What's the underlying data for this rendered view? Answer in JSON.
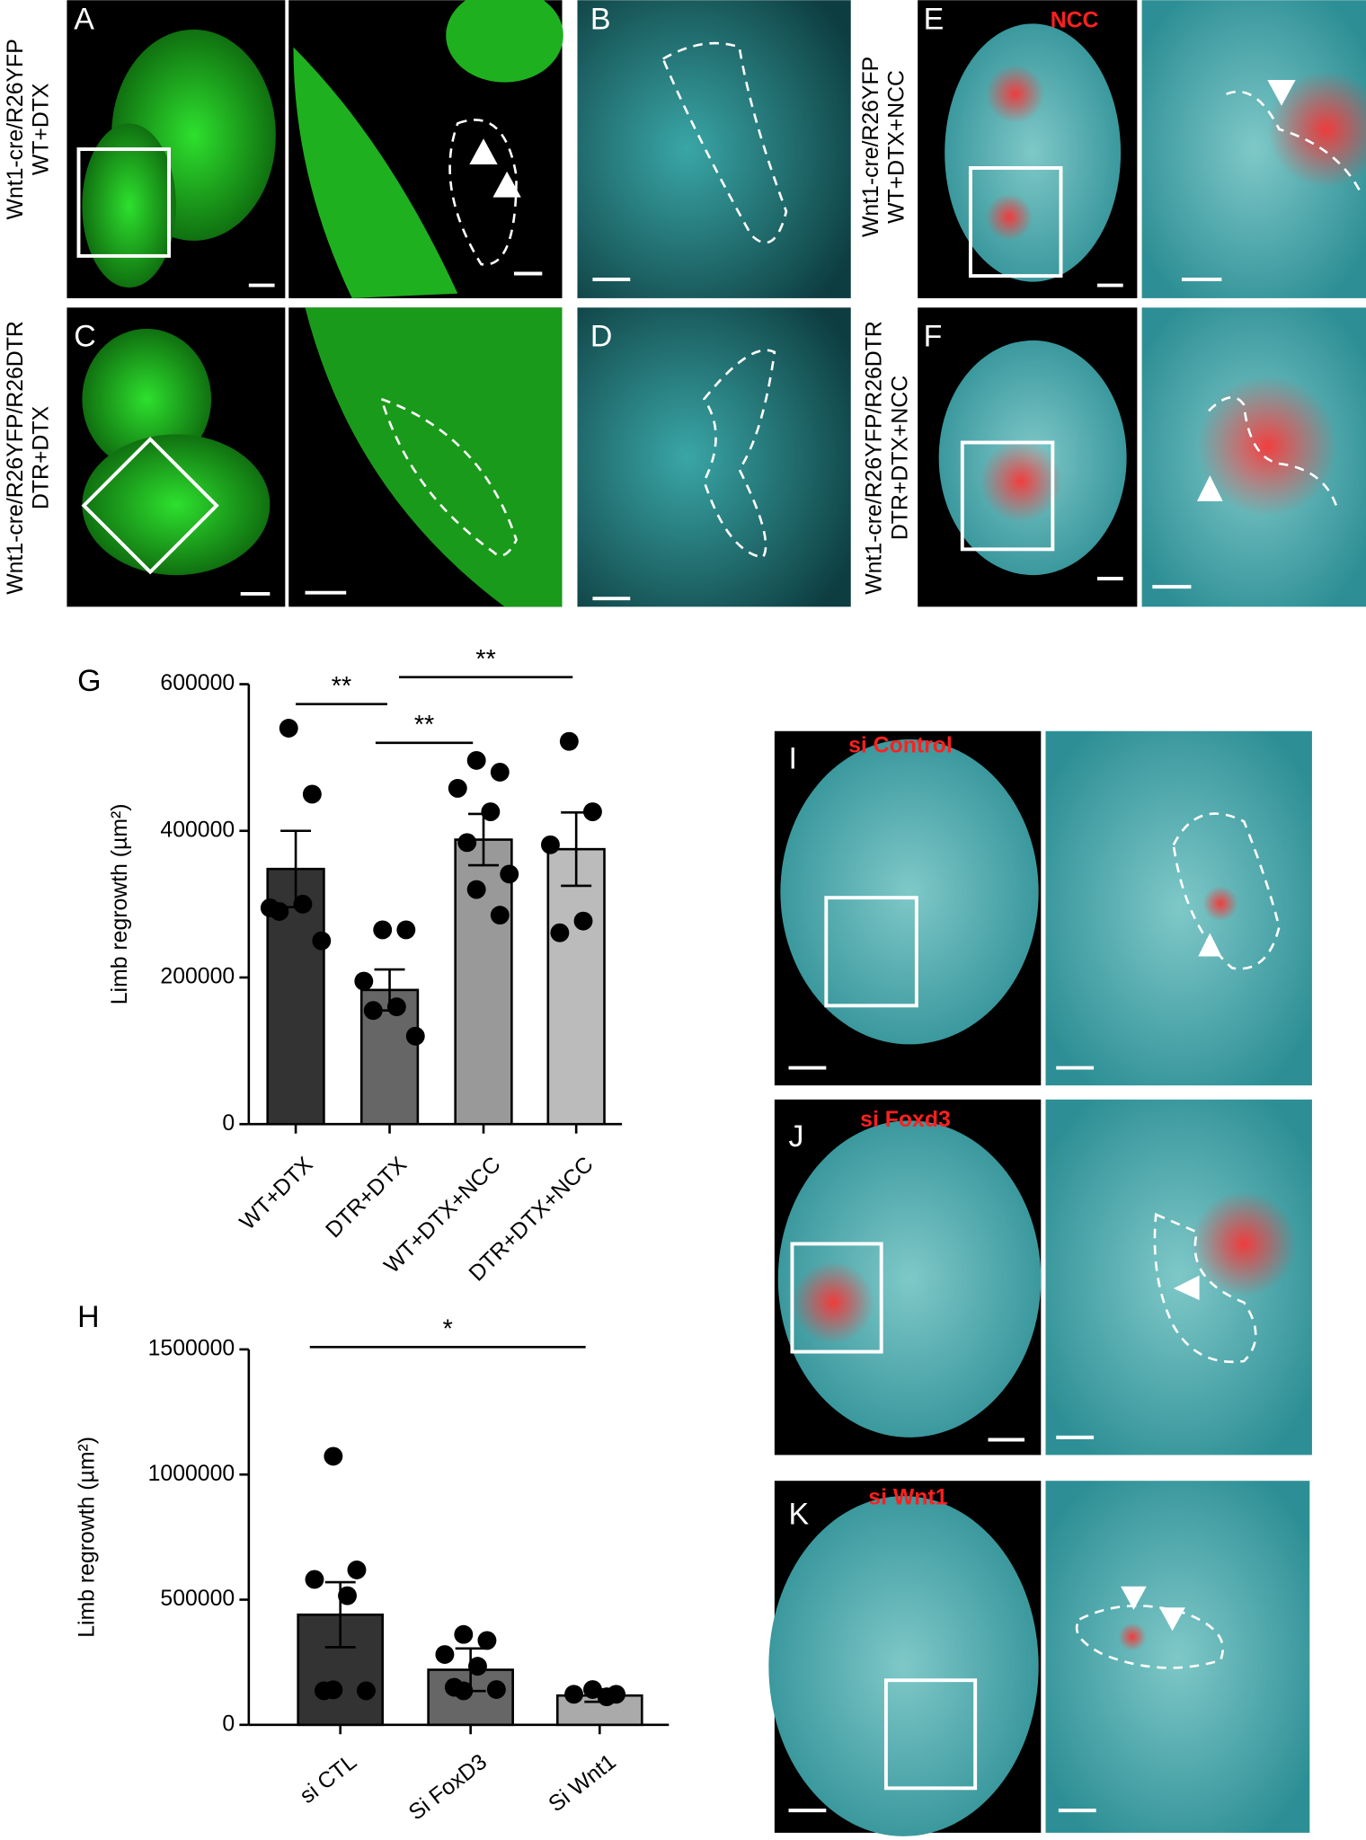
{
  "panel_labels": [
    "A",
    "B",
    "C",
    "D",
    "E",
    "F",
    "G",
    "H",
    "I",
    "J",
    "K"
  ],
  "row_labels": [
    [
      "Wnt1-cre/R26YFP",
      "WT+DTX"
    ],
    [
      "Wnt1-cre/R26YFP/R26DTR",
      "DTR+DTX"
    ],
    [
      "Wnt1-cre/R26YFP",
      "WT+DTX+NCC"
    ],
    [
      "Wnt1-cre/R26YFP/R26DTR",
      "DTR+DTX+NCC"
    ]
  ],
  "image_labels": [
    "NCC",
    "si Control",
    "si Foxd3",
    "si Wnt1"
  ],
  "chart_data": [
    {
      "type": "bar",
      "ylabel": "Limb regrowth (µm²)",
      "categories": [
        "WT+DTX",
        "DTR+DTX",
        "WT+DTX+NCC",
        "DTR+DTX+NCC"
      ],
      "values": [
        348000,
        183000,
        388000,
        375000
      ],
      "errors": [
        52000,
        28000,
        35000,
        50000
      ],
      "points": [
        [
          540000,
          450000,
          295000,
          300000,
          290000,
          250000
        ],
        [
          265000,
          265000,
          195000,
          160000,
          155000,
          120000
        ],
        [
          496000,
          480000,
          458000,
          426000,
          384000,
          341000,
          320000,
          285000
        ],
        [
          522000,
          426000,
          381000,
          277000,
          261000
        ]
      ],
      "colors": [
        "#333333",
        "#666666",
        "#999999",
        "#bbbbbb"
      ],
      "ylim": [
        0,
        600000
      ],
      "yticks": [
        0,
        200000,
        400000,
        600000
      ],
      "annotations": [
        "**",
        "**",
        "**"
      ]
    },
    {
      "type": "bar",
      "ylabel": "Limb regrowth (µm²)",
      "categories": [
        "si CTL",
        "Si FoxD3",
        "Si Wnt1"
      ],
      "values": [
        440000,
        220000,
        117000
      ],
      "errors": [
        130000,
        85000,
        25000
      ],
      "points": [
        [
          1073000,
          619000,
          581000,
          516000,
          136000,
          136000,
          140000
        ],
        [
          361000,
          337000,
          281000,
          234000,
          150000,
          141000,
          136000
        ],
        [
          141000,
          122000,
          122000,
          112000
        ]
      ],
      "colors": [
        "#333333",
        "#666666",
        "#aaaaaa"
      ],
      "ylim": [
        0,
        1500000
      ],
      "yticks": [
        0,
        500000,
        1000000,
        1500000
      ],
      "annotations": [
        "*"
      ]
    }
  ]
}
